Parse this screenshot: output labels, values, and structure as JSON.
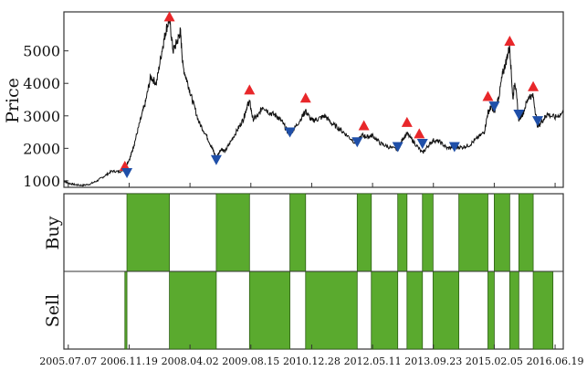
{
  "chart_data": [
    {
      "type": "line",
      "ylabel": "Price",
      "xlabel": "",
      "title": "",
      "ylim": [
        800,
        6200
      ],
      "y_ticks": [
        "1000",
        "2000",
        "3000",
        "4000",
        "5000"
      ],
      "x_range": [
        "2005-06-01",
        "2016-08-25"
      ],
      "line_color": "#111111",
      "series": [
        {
          "values": [
            [
              "2005-06-01",
              1000
            ],
            [
              "2005-07-07",
              930
            ],
            [
              "2005-09-01",
              880
            ],
            [
              "2005-11-01",
              860
            ],
            [
              "2006-01-01",
              900
            ],
            [
              "2006-03-01",
              1000
            ],
            [
              "2006-05-01",
              1150
            ],
            [
              "2006-07-01",
              1300
            ],
            [
              "2006-09-01",
              1280
            ],
            [
              "2006-10-15",
              1400
            ],
            [
              "2006-12-01",
              1750
            ],
            [
              "2007-01-01",
              2150
            ],
            [
              "2007-02-15",
              2800
            ],
            [
              "2007-04-01",
              3400
            ],
            [
              "2007-05-15",
              4200
            ],
            [
              "2007-07-01",
              4000
            ],
            [
              "2007-08-15",
              5000
            ],
            [
              "2007-09-15",
              5600
            ],
            [
              "2007-10-16",
              6000
            ],
            [
              "2007-11-15",
              5000
            ],
            [
              "2007-12-20",
              5300
            ],
            [
              "2008-01-14",
              5600
            ],
            [
              "2008-02-05",
              4500
            ],
            [
              "2008-03-15",
              4000
            ],
            [
              "2008-04-20",
              3500
            ],
            [
              "2008-06-15",
              2800
            ],
            [
              "2008-08-15",
              2400
            ],
            [
              "2008-10-01",
              2000
            ],
            [
              "2008-11-04",
              1700
            ],
            [
              "2008-12-15",
              2000
            ],
            [
              "2009-01-15",
              1900
            ],
            [
              "2009-03-01",
              2200
            ],
            [
              "2009-05-01",
              2600
            ],
            [
              "2009-06-15",
              2900
            ],
            [
              "2009-07-15",
              3300
            ],
            [
              "2009-08-04",
              3450
            ],
            [
              "2009-09-01",
              2900
            ],
            [
              "2009-10-15",
              3000
            ],
            [
              "2009-11-20",
              3300
            ],
            [
              "2010-01-15",
              3100
            ],
            [
              "2010-03-15",
              3000
            ],
            [
              "2010-05-01",
              2800
            ],
            [
              "2010-06-15",
              2500
            ],
            [
              "2010-07-02",
              2450
            ],
            [
              "2010-08-15",
              2650
            ],
            [
              "2010-10-15",
              3000
            ],
            [
              "2010-11-08",
              3150
            ],
            [
              "2010-12-28",
              2850
            ],
            [
              "2011-02-15",
              2900
            ],
            [
              "2011-04-15",
              3000
            ],
            [
              "2011-06-15",
              2750
            ],
            [
              "2011-08-15",
              2600
            ],
            [
              "2011-10-15",
              2400
            ],
            [
              "2011-12-28",
              2150
            ],
            [
              "2012-02-15",
              2400
            ],
            [
              "2012-04-01",
              2350
            ],
            [
              "2012-05-11",
              2400
            ],
            [
              "2012-07-15",
              2150
            ],
            [
              "2012-09-15",
              2050
            ],
            [
              "2012-12-04",
              1950
            ],
            [
              "2013-01-15",
              2300
            ],
            [
              "2013-02-18",
              2450
            ],
            [
              "2013-04-15",
              2200
            ],
            [
              "2013-06-25",
              1850
            ],
            [
              "2013-08-15",
              2100
            ],
            [
              "2013-09-23",
              2250
            ],
            [
              "2013-11-15",
              2200
            ],
            [
              "2014-01-15",
              2000
            ],
            [
              "2014-03-15",
              2050
            ],
            [
              "2014-05-15",
              2030
            ],
            [
              "2014-07-15",
              2100
            ],
            [
              "2014-09-15",
              2300
            ],
            [
              "2014-11-15",
              2500
            ],
            [
              "2014-12-15",
              3100
            ],
            [
              "2015-01-15",
              3300
            ],
            [
              "2015-02-05",
              3100
            ],
            [
              "2015-03-15",
              3600
            ],
            [
              "2015-04-15",
              4300
            ],
            [
              "2015-05-15",
              4700
            ],
            [
              "2015-06-12",
              5150
            ],
            [
              "2015-07-08",
              3500
            ],
            [
              "2015-07-24",
              4100
            ],
            [
              "2015-08-26",
              2900
            ],
            [
              "2015-10-01",
              3100
            ],
            [
              "2015-11-15",
              3600
            ],
            [
              "2015-12-22",
              3600
            ],
            [
              "2016-01-28",
              2650
            ],
            [
              "2016-03-15",
              2900
            ],
            [
              "2016-04-15",
              3050
            ],
            [
              "2016-06-19",
              2950
            ],
            [
              "2016-08-25",
              3100
            ]
          ]
        }
      ],
      "peaks": [
        [
          "2006-10-15",
          1450
        ],
        [
          "2007-10-16",
          6050
        ],
        [
          "2009-08-04",
          3800
        ],
        [
          "2010-11-08",
          3550
        ],
        [
          "2012-03-01",
          2700
        ],
        [
          "2013-02-18",
          2800
        ],
        [
          "2013-05-30",
          2450
        ],
        [
          "2014-12-15",
          3600
        ],
        [
          "2015-06-12",
          5300
        ],
        [
          "2015-12-22",
          3900
        ]
      ],
      "troughs": [
        [
          "2006-11-01",
          1250
        ],
        [
          "2008-11-04",
          1650
        ],
        [
          "2010-07-02",
          2500
        ],
        [
          "2012-01-06",
          2200
        ],
        [
          "2012-12-04",
          2050
        ],
        [
          "2013-06-25",
          2150
        ],
        [
          "2014-03-15",
          2050
        ],
        [
          "2015-02-05",
          3300
        ],
        [
          "2015-08-26",
          3050
        ],
        [
          "2016-01-28",
          2850
        ]
      ],
      "peak_color": "#e8272a",
      "trough_color": "#1f4fa8"
    },
    {
      "type": "bar",
      "categories": [
        "Buy",
        "Sell"
      ],
      "x_ticks": [
        "2005.07.07",
        "2006.11.19",
        "2008.04.02",
        "2009.08.15",
        "2010.12.28",
        "2012.05.11",
        "2013.09.23",
        "2015.02.05",
        "2016.06.19"
      ],
      "bar_color": "#5aaa2e",
      "intervals": [
        {
          "row": "Sell",
          "start": "2006-10-15",
          "end": "2006-11-01"
        },
        {
          "row": "Buy",
          "start": "2006-11-01",
          "end": "2007-10-16"
        },
        {
          "row": "Sell",
          "start": "2007-10-16",
          "end": "2008-11-04"
        },
        {
          "row": "Buy",
          "start": "2008-11-04",
          "end": "2009-08-04"
        },
        {
          "row": "Sell",
          "start": "2009-08-04",
          "end": "2010-07-02"
        },
        {
          "row": "Buy",
          "start": "2010-07-02",
          "end": "2010-11-08"
        },
        {
          "row": "Sell",
          "start": "2010-11-08",
          "end": "2012-01-06"
        },
        {
          "row": "Buy",
          "start": "2012-01-06",
          "end": "2012-05-01"
        },
        {
          "row": "Sell",
          "start": "2012-05-01",
          "end": "2012-12-04"
        },
        {
          "row": "Buy",
          "start": "2012-12-04",
          "end": "2013-02-18"
        },
        {
          "row": "Sell",
          "start": "2013-02-18",
          "end": "2013-06-25"
        },
        {
          "row": "Buy",
          "start": "2013-06-25",
          "end": "2013-09-20"
        },
        {
          "row": "Sell",
          "start": "2013-09-20",
          "end": "2014-04-20"
        },
        {
          "row": "Buy",
          "start": "2014-04-20",
          "end": "2014-12-15"
        },
        {
          "row": "Sell",
          "start": "2014-12-15",
          "end": "2015-02-05"
        },
        {
          "row": "Buy",
          "start": "2015-02-05",
          "end": "2015-06-12"
        },
        {
          "row": "Sell",
          "start": "2015-06-12",
          "end": "2015-08-26"
        },
        {
          "row": "Buy",
          "start": "2015-08-26",
          "end": "2015-12-22"
        },
        {
          "row": "Sell",
          "start": "2015-12-22",
          "end": "2016-06-01"
        }
      ]
    }
  ]
}
